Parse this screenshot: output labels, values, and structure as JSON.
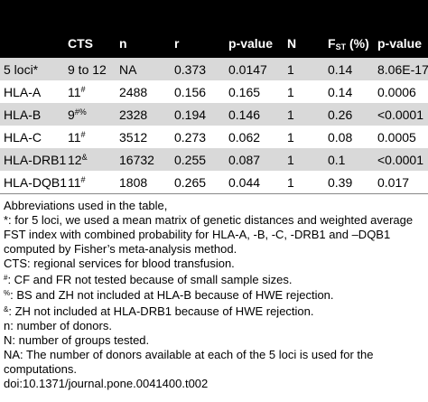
{
  "headers": {
    "cts": "CTS",
    "n": "n",
    "r": "r",
    "pvalue": "p-value",
    "N": "N",
    "fst_main": "F",
    "fst_sub": "ST",
    "fst_unit": " (%)",
    "pvalue2": "p-value"
  },
  "rows": [
    {
      "loci": "5 loci*",
      "cts": "9 to 12",
      "cts_sup": "",
      "n": "NA",
      "r": "0.373",
      "p": "0.0147",
      "N": "1",
      "fst": "0.14",
      "p2": "8.06E-17"
    },
    {
      "loci": "HLA-A",
      "cts": "11",
      "cts_sup": "#",
      "n": "2488",
      "r": "0.156",
      "p": "0.165",
      "N": "1",
      "fst": "0.14",
      "p2": "0.0006"
    },
    {
      "loci": "HLA-B",
      "cts": "9",
      "cts_sup": "#%",
      "n": "2328",
      "r": "0.194",
      "p": "0.146",
      "N": "1",
      "fst": "0.26",
      "p2": "<0.0001"
    },
    {
      "loci": "HLA-C",
      "cts": "11",
      "cts_sup": "#",
      "n": "3512",
      "r": "0.273",
      "p": "0.062",
      "N": "1",
      "fst": "0.08",
      "p2": "0.0005"
    },
    {
      "loci": "HLA-DRB1",
      "cts": "12",
      "cts_sup": "&",
      "n": "16732",
      "r": "0.255",
      "p": "0.087",
      "N": "1",
      "fst": "0.1",
      "p2": "<0.0001"
    },
    {
      "loci": "HLA-DQB1",
      "cts": "11",
      "cts_sup": "#",
      "n": "1808",
      "r": "0.265",
      "p": "0.044",
      "N": "1",
      "fst": "0.39",
      "p2": "0.017"
    }
  ],
  "notes": {
    "l1": "Abbreviations used in the table,",
    "l2": "*: for 5 loci, we used a mean matrix of genetic distances and weighted average",
    "l3": "FST index with combined probability for HLA-A, -B, -C, -DRB1 and –DQB1",
    "l4": "computed by Fisher’s meta-analysis method.",
    "l5": "CTS: regional services for blood transfusion.",
    "l6_sup": "#",
    "l6": ": CF and FR not tested because of small sample sizes.",
    "l7_sup": "%",
    "l7": ": BS and ZH not included at HLA-B because of HWE rejection.",
    "l8_sup": "&",
    "l8": ": ZH not included at HLA-DRB1 because of HWE rejection.",
    "l9": "n: number of donors.",
    "l10": "N: number of groups tested.",
    "l11": "NA: The number of donors available at each of the 5 loci is used for the",
    "l12": "computations.",
    "l13": "doi:10.1371/journal.pone.0041400.t002"
  }
}
